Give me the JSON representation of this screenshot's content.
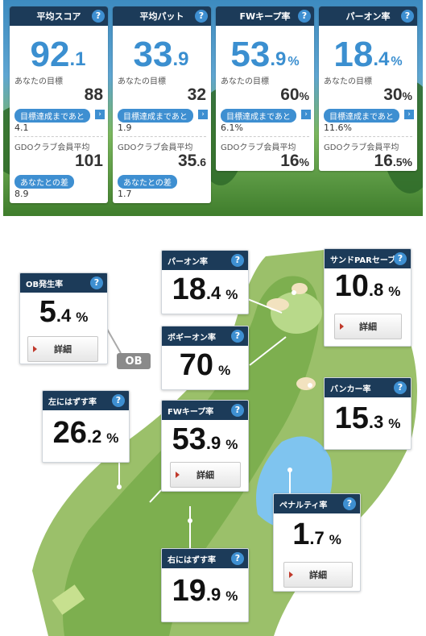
{
  "summary": [
    {
      "title": "平均スコア",
      "value_int": "92",
      "value_dec": ".1",
      "unit": "",
      "goal_label": "あなたの目標",
      "goal_value": "88",
      "goal_dec": "",
      "goal_unit": "",
      "to_goal_label": "目標達成まであと",
      "to_goal_value": "4.1",
      "avg_label": "GDOクラブ会員平均",
      "avg_value": "101",
      "avg_dec": "",
      "avg_unit": "",
      "diff_label": "あなたとの差",
      "diff_value": "8.9"
    },
    {
      "title": "平均パット",
      "value_int": "33",
      "value_dec": ".9",
      "unit": "",
      "goal_label": "あなたの目標",
      "goal_value": "32",
      "goal_dec": "",
      "goal_unit": "",
      "to_goal_label": "目標達成まであと",
      "to_goal_value": "1.9",
      "avg_label": "GDOクラブ会員平均",
      "avg_value": "35",
      "avg_dec": ".6",
      "avg_unit": "",
      "diff_label": "あなたとの差",
      "diff_value": "1.7"
    },
    {
      "title": "FWキープ率",
      "value_int": "53",
      "value_dec": ".9",
      "unit": "%",
      "goal_label": "あなたの目標",
      "goal_value": "60",
      "goal_dec": "",
      "goal_unit": "%",
      "to_goal_label": "目標達成まであと",
      "to_goal_value": "6.1%",
      "avg_label": "GDOクラブ会員平均",
      "avg_value": "16",
      "avg_dec": "",
      "avg_unit": "%",
      "diff_label": "",
      "diff_value": ""
    },
    {
      "title": "パーオン率",
      "value_int": "18",
      "value_dec": ".4",
      "unit": "%",
      "goal_label": "あなたの目標",
      "goal_value": "30",
      "goal_dec": "",
      "goal_unit": "%",
      "to_goal_label": "目標達成まであと",
      "to_goal_value": "11.6%",
      "avg_label": "GDOクラブ会員平均",
      "avg_value": "16",
      "avg_dec": ".5",
      "avg_unit": "%",
      "diff_label": "",
      "diff_value": ""
    }
  ],
  "help_glyph": "?",
  "arrow_glyph": "›",
  "course": {
    "ob_tag": "OB",
    "detail_label": "詳細",
    "stats": {
      "ob": {
        "title": "OB発生率",
        "int": "5",
        "dec": ".4",
        "unit": "%"
      },
      "left_miss": {
        "title": "左にはずす率",
        "int": "26",
        "dec": ".2",
        "unit": "%"
      },
      "par_on": {
        "title": "パーオン率",
        "int": "18",
        "dec": ".4",
        "unit": "%"
      },
      "bogey_on": {
        "title": "ボギーオン率",
        "int": "70",
        "dec": "",
        "unit": "%"
      },
      "fw_keep": {
        "title": "FWキープ率",
        "int": "53",
        "dec": ".9",
        "unit": "%"
      },
      "right_miss": {
        "title": "右にはずす率",
        "int": "19",
        "dec": ".9",
        "unit": "%"
      },
      "sand_save": {
        "title": "サンドPARセーブ率",
        "int": "10",
        "dec": ".8",
        "unit": "%"
      },
      "bunker": {
        "title": "バンカー率",
        "int": "15",
        "dec": ".3",
        "unit": "%"
      },
      "penalty": {
        "title": "ペナルティ率",
        "int": "1",
        "dec": ".7",
        "unit": "%"
      }
    }
  }
}
